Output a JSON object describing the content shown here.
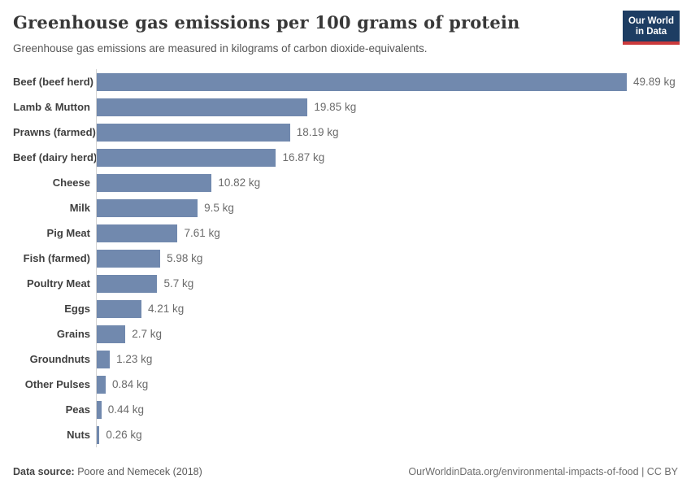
{
  "header": {
    "title": "Greenhouse gas emissions per 100 grams of protein",
    "subtitle": "Greenhouse gas emissions are measured in kilograms of carbon dioxide-equivalents."
  },
  "logo": {
    "line1": "Our World",
    "line2": "in Data",
    "bg_color": "#1d3d63",
    "accent_color": "#cb3a3c"
  },
  "chart_data": {
    "type": "bar",
    "orientation": "horizontal",
    "title": "Greenhouse gas emissions per 100 grams of protein",
    "subtitle": "Greenhouse gas emissions are measured in kilograms of carbon dioxide-equivalents.",
    "unit": "kg CO2-equivalents per 100g protein",
    "x_axis_visible": false,
    "grid": false,
    "legend": "none",
    "bar_color": "#7189ae",
    "axis_line_color": "#d4d4d4",
    "categories": [
      "Beef (beef herd)",
      "Lamb & Mutton",
      "Prawns (farmed)",
      "Beef (dairy herd)",
      "Cheese",
      "Milk",
      "Pig Meat",
      "Fish (farmed)",
      "Poultry Meat",
      "Eggs",
      "Grains",
      "Groundnuts",
      "Other Pulses",
      "Peas",
      "Nuts"
    ],
    "values": [
      49.89,
      19.85,
      18.19,
      16.87,
      10.82,
      9.5,
      7.61,
      5.98,
      5.7,
      4.21,
      2.7,
      1.23,
      0.84,
      0.44,
      0.26
    ],
    "value_labels": [
      "49.89 kg",
      "19.85 kg",
      "18.19 kg",
      "16.87 kg",
      "10.82 kg",
      "9.5 kg",
      "7.61 kg",
      "5.98 kg",
      "5.7 kg",
      "4.21 kg",
      "2.7 kg",
      "1.23 kg",
      "0.84 kg",
      "0.44 kg",
      "0.26 kg"
    ],
    "xlim": [
      0,
      55
    ]
  },
  "footer": {
    "source_label": "Data source:",
    "source_value": " Poore and Nemecek (2018)",
    "url": "OurWorldinData.org/environmental-impacts-of-food",
    "separator": " | ",
    "license": "CC BY"
  }
}
